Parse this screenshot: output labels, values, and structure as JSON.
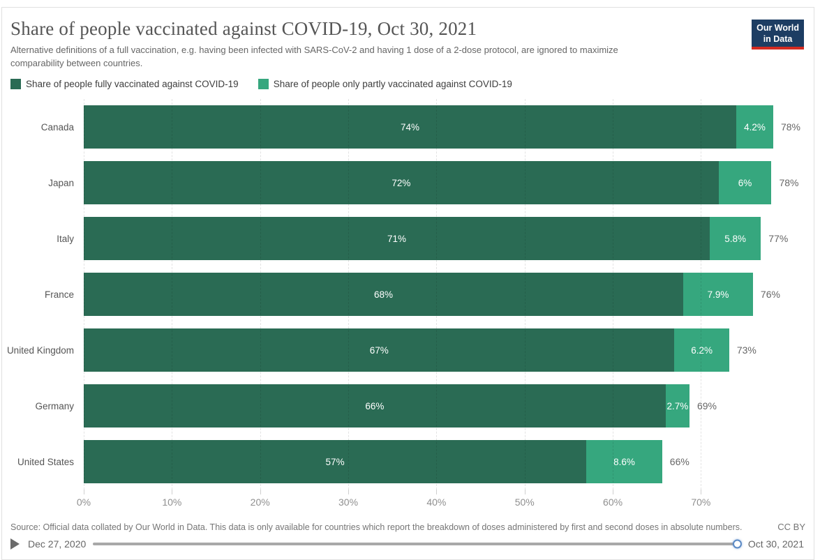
{
  "header": {
    "title": "Share of people vaccinated against COVID-19, Oct 30, 2021",
    "subtitle": "Alternative definitions of a full vaccination, e.g. having been infected with SARS-CoV-2 and having 1 dose of a 2-dose protocol, are ignored to maximize comparability between countries.",
    "logo": {
      "line1": "Our World",
      "line2": "in Data"
    }
  },
  "colors": {
    "fully": "#2a6b54",
    "partly": "#36a77e",
    "logo_navy": "#1d3d63",
    "logo_red": "#d42b21"
  },
  "chart_data": {
    "type": "bar",
    "orientation": "horizontal",
    "stacked": true,
    "grid": true,
    "categories": [
      "Canada",
      "Japan",
      "Italy",
      "France",
      "United Kingdom",
      "Germany",
      "United States"
    ],
    "series": [
      {
        "name": "Share of people fully vaccinated against COVID-19",
        "color": "#2a6b54",
        "values": [
          74,
          72,
          71,
          68,
          67,
          66,
          57
        ],
        "labels": [
          "74%",
          "72%",
          "71%",
          "68%",
          "67%",
          "66%",
          "57%"
        ]
      },
      {
        "name": "Share of people only partly vaccinated against COVID-19",
        "color": "#36a77e",
        "values": [
          4.2,
          6,
          5.8,
          7.9,
          6.2,
          2.7,
          8.6
        ],
        "labels": [
          "4.2%",
          "6%",
          "5.8%",
          "7.9%",
          "6.2%",
          "2.7%",
          "8.6%"
        ]
      }
    ],
    "totals": [
      "78%",
      "78%",
      "77%",
      "76%",
      "73%",
      "69%",
      "66%"
    ],
    "x_axis": {
      "tick_labels": [
        "0%",
        "10%",
        "20%",
        "30%",
        "40%",
        "50%",
        "60%",
        "70%"
      ],
      "tick_values": [
        0,
        10,
        20,
        30,
        40,
        50,
        60,
        70
      ],
      "axis_max": 82
    },
    "legend_position": "top"
  },
  "footer": {
    "source": "Source: Official data collated by Our World in Data. This data is only available for countries which report the breakdown of doses administered by first and second doses in absolute numbers.",
    "license": "CC BY"
  },
  "timeline": {
    "start_label": "Dec 27, 2020",
    "end_label": "Oct 30, 2021"
  }
}
